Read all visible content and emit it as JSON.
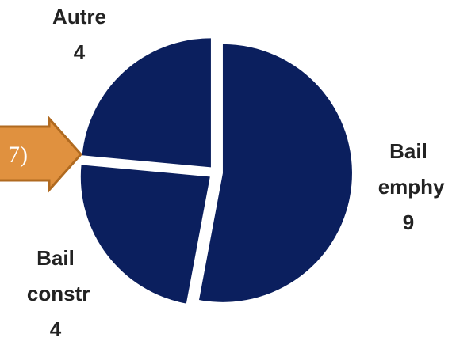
{
  "chart_data": {
    "type": "pie",
    "categories": [
      "Bail emphy",
      "Bail constr",
      "Autre"
    ],
    "values": [
      9,
      4,
      4
    ],
    "color": "#0b1f5e",
    "annotation": "7)"
  }
}
